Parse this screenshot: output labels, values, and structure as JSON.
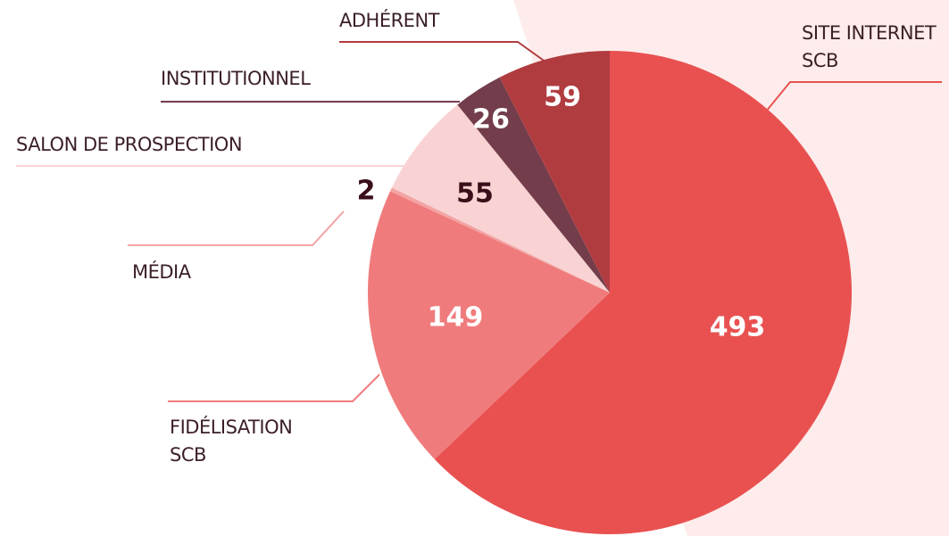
{
  "chart_data": {
    "type": "pie",
    "categories": [
      "SITE INTERNET SCB",
      "FIDÉLISATION SCB",
      "MÉDIA",
      "SALON DE PROSPECTION",
      "INSTITUTIONNEL",
      "ADHÉRENT"
    ],
    "values": [
      493,
      149,
      2,
      55,
      26,
      59
    ],
    "colors": [
      "#e95151",
      "#f07b7c",
      "#f3a3a3",
      "#f9d3d3",
      "#733d4b",
      "#b13c40"
    ]
  }
}
